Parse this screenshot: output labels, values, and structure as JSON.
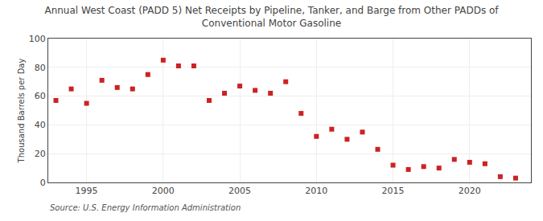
{
  "chart_data": {
    "type": "scatter",
    "title": "Annual West Coast (PADD 5) Net Receipts by Pipeline, Tanker, and Barge from Other PADDs of\nConventional Motor Gasoline",
    "ylabel": "Thousand Barrels per Day",
    "annotations": [
      "Source: U.S. Energy Information Administration"
    ],
    "x": [
      1993,
      1994,
      1995,
      1996,
      1997,
      1998,
      1999,
      2000,
      2001,
      2002,
      2003,
      2004,
      2005,
      2006,
      2007,
      2008,
      2009,
      2010,
      2011,
      2012,
      2013,
      2014,
      2015,
      2016,
      2017,
      2018,
      2019,
      2020,
      2021,
      2022,
      2023
    ],
    "values": [
      57,
      65,
      55,
      71,
      66,
      65,
      75,
      85,
      81,
      81,
      57,
      62,
      67,
      64,
      62,
      70,
      48,
      32,
      37,
      30,
      35,
      23,
      12,
      9,
      11,
      10,
      16,
      14,
      13,
      4,
      3
    ],
    "color": "#cc2222",
    "marker": "square",
    "xlim": [
      1992.5,
      2024
    ],
    "xticks": [
      1995,
      2000,
      2005,
      2010,
      2015,
      2020
    ],
    "ylim": [
      0,
      100
    ],
    "yticks": [
      0,
      20,
      40,
      60,
      80,
      100
    ],
    "grid": true
  }
}
